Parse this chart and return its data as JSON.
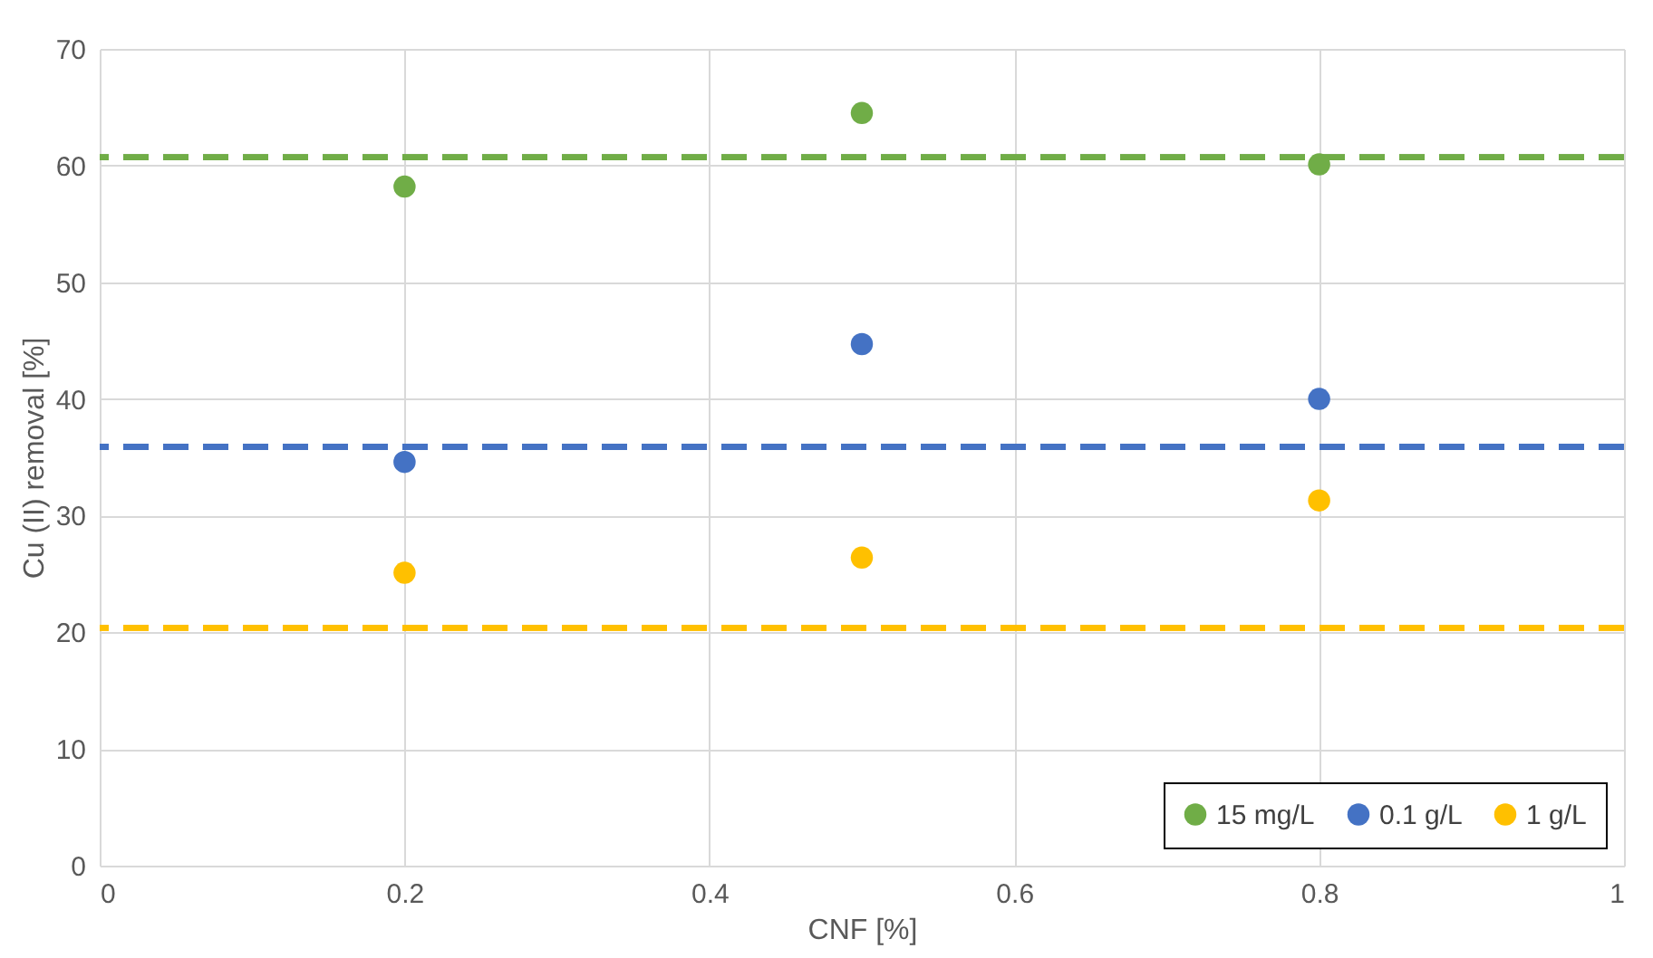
{
  "chart_data": {
    "type": "scatter",
    "xlabel": "CNF [%]",
    "ylabel": "Cu (II) removal [%]",
    "xlim": [
      0,
      1
    ],
    "xticks": [
      0,
      0.2,
      0.4,
      0.6,
      0.8,
      1
    ],
    "ylim": [
      0,
      70
    ],
    "yticks": [
      0,
      10,
      20,
      30,
      40,
      50,
      60,
      70
    ],
    "grid": true,
    "legend": "bottom right",
    "marker": "circle",
    "series": [
      {
        "name": "15 mg/L",
        "color": "#70ad47",
        "x": [
          0.2,
          0.5,
          0.8
        ],
        "values": [
          58.2,
          64.5,
          60.1
        ]
      },
      {
        "name": "0.1 g/L",
        "color": "#4472c4",
        "x": [
          0.2,
          0.5,
          0.8
        ],
        "values": [
          34.6,
          44.7,
          40.0
        ]
      },
      {
        "name": "1 g/L",
        "color": "#ffc000",
        "x": [
          0.2,
          0.5,
          0.8
        ],
        "values": [
          25.1,
          26.4,
          31.3
        ]
      }
    ],
    "ref_lines": [
      {
        "axis": "y",
        "value": 60.7,
        "color": "#70ad47",
        "line_style": "dashed"
      },
      {
        "axis": "y",
        "value": 35.9,
        "color": "#4472c4",
        "line_style": "dashed"
      },
      {
        "axis": "y",
        "value": 20.4,
        "color": "#ffc000",
        "line_style": "dashed"
      }
    ]
  }
}
